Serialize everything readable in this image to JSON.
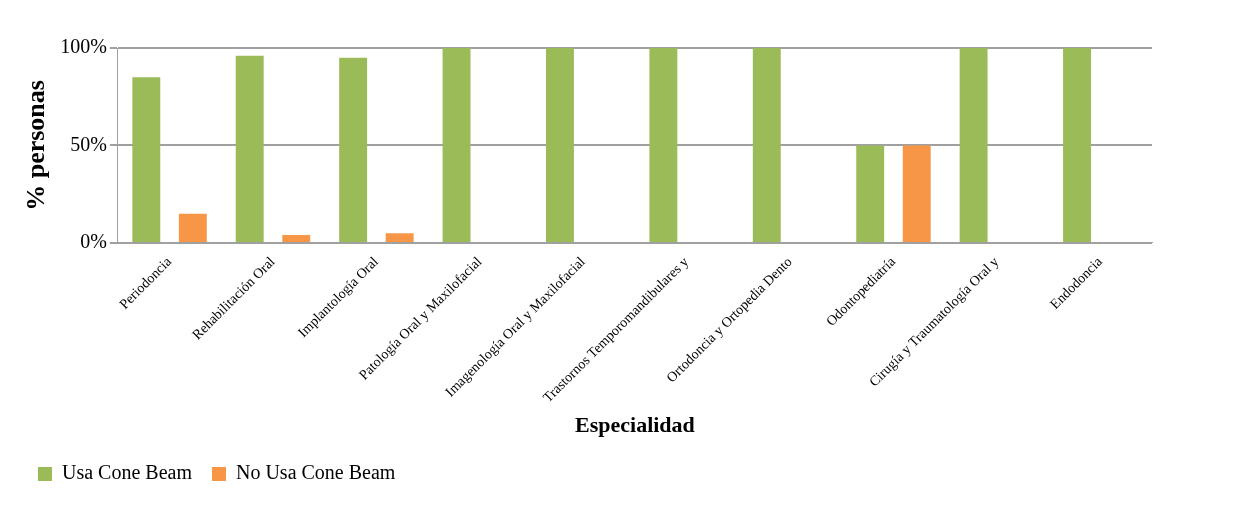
{
  "chart_data": {
    "type": "bar",
    "xlabel": "Especialidad",
    "ylabel": "% personas",
    "categories": [
      "Periodoncia",
      "Rehabilitación Oral",
      "Implantología Oral",
      "Patología Oral y Maxilofacial",
      "Imagenología Oral y Maxilofacial",
      "Trastornos Temporomandibulares y",
      "Ortodoncia y Ortopedia Dento",
      "Odontopediatría",
      "Cirugía y Traumatología Oral y",
      "Endodoncia"
    ],
    "series": [
      {
        "name": "Usa Cone Beam",
        "color": "#9bbb59",
        "values": [
          85,
          96,
          95,
          100,
          100,
          100,
          100,
          50,
          100,
          100
        ]
      },
      {
        "name": "No Usa Cone Beam",
        "color": "#f79646",
        "values": [
          15,
          4,
          5,
          0,
          0,
          0,
          0,
          50,
          0,
          0
        ]
      }
    ],
    "ylim": [
      0,
      100
    ],
    "yticks": [
      {
        "value": 0,
        "label": "0%"
      },
      {
        "value": 50,
        "label": "50%"
      },
      {
        "value": 100,
        "label": "100%"
      }
    ],
    "grid": "y",
    "legend": "bottom left"
  }
}
